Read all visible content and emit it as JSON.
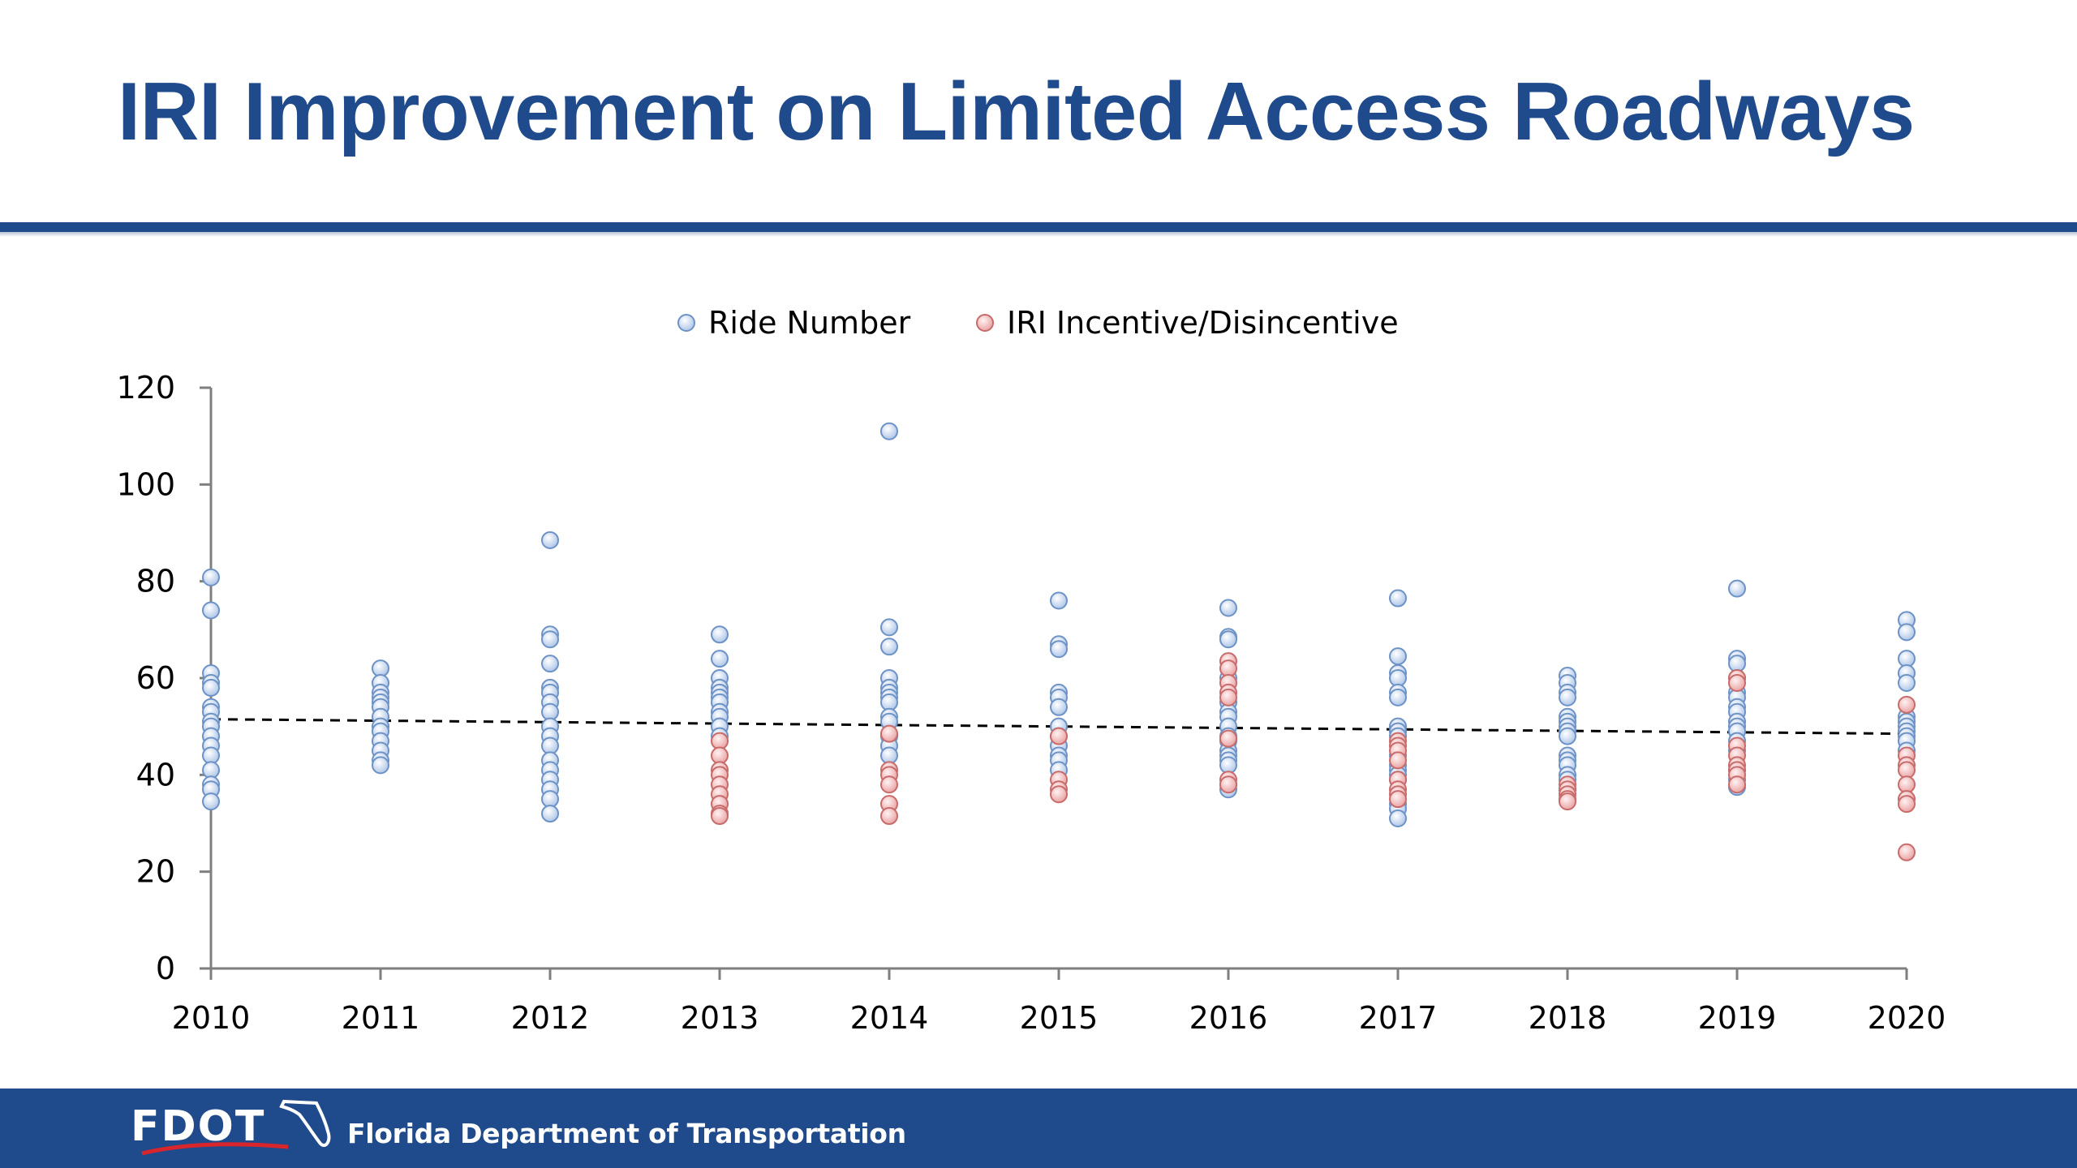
{
  "slide": {
    "title": "IRI Improvement on Limited Access Roadways"
  },
  "footer": {
    "logo_text": "FDOT",
    "organization": "Florida Department of Transportation",
    "color": "#1f4a8c"
  },
  "chart_data": {
    "type": "scatter",
    "title": "",
    "xlabel": "",
    "ylabel": "",
    "xlim": [
      2010,
      2020
    ],
    "ylim": [
      0,
      120
    ],
    "x_ticks": [
      "2010",
      "2011",
      "2012",
      "2013",
      "2014",
      "2015",
      "2016",
      "2017",
      "2018",
      "2019",
      "2020"
    ],
    "y_ticks": [
      "0",
      "20",
      "40",
      "60",
      "80",
      "100",
      "120"
    ],
    "grid": false,
    "legend": {
      "placement": "top-center"
    },
    "series": [
      {
        "name": "Ride Number",
        "color": "#b9cde9",
        "stroke": "#6d93c6",
        "points": [
          [
            2010,
            80.8
          ],
          [
            2010,
            74
          ],
          [
            2010,
            61
          ],
          [
            2010,
            59
          ],
          [
            2010,
            58
          ],
          [
            2010,
            54
          ],
          [
            2010,
            53
          ],
          [
            2010,
            51
          ],
          [
            2010,
            50
          ],
          [
            2010,
            48
          ],
          [
            2010,
            46
          ],
          [
            2010,
            44
          ],
          [
            2010,
            41
          ],
          [
            2010,
            38
          ],
          [
            2010,
            37
          ],
          [
            2010,
            34.5
          ],
          [
            2011,
            62
          ],
          [
            2011,
            59
          ],
          [
            2011,
            57
          ],
          [
            2011,
            56
          ],
          [
            2011,
            55
          ],
          [
            2011,
            54
          ],
          [
            2011,
            52
          ],
          [
            2011,
            50
          ],
          [
            2011,
            49
          ],
          [
            2011,
            47
          ],
          [
            2011,
            45
          ],
          [
            2011,
            43
          ],
          [
            2011,
            42
          ],
          [
            2012,
            88.5
          ],
          [
            2012,
            69
          ],
          [
            2012,
            68
          ],
          [
            2012,
            63
          ],
          [
            2012,
            58
          ],
          [
            2012,
            57
          ],
          [
            2012,
            55
          ],
          [
            2012,
            53
          ],
          [
            2012,
            50
          ],
          [
            2012,
            48
          ],
          [
            2012,
            46
          ],
          [
            2012,
            43
          ],
          [
            2012,
            41
          ],
          [
            2012,
            39
          ],
          [
            2012,
            37
          ],
          [
            2012,
            35
          ],
          [
            2012,
            32
          ],
          [
            2013,
            69
          ],
          [
            2013,
            64
          ],
          [
            2013,
            60
          ],
          [
            2013,
            58
          ],
          [
            2013,
            57
          ],
          [
            2013,
            56
          ],
          [
            2013,
            55
          ],
          [
            2013,
            53
          ],
          [
            2013,
            52
          ],
          [
            2013,
            50
          ],
          [
            2013,
            48
          ],
          [
            2014,
            111
          ],
          [
            2014,
            70.5
          ],
          [
            2014,
            66.5
          ],
          [
            2014,
            60
          ],
          [
            2014,
            58
          ],
          [
            2014,
            57
          ],
          [
            2014,
            56
          ],
          [
            2014,
            55
          ],
          [
            2014,
            52
          ],
          [
            2014,
            51
          ],
          [
            2014,
            48
          ],
          [
            2014,
            46
          ],
          [
            2014,
            44
          ],
          [
            2015,
            76
          ],
          [
            2015,
            67
          ],
          [
            2015,
            66
          ],
          [
            2015,
            57
          ],
          [
            2015,
            56
          ],
          [
            2015,
            54
          ],
          [
            2015,
            50
          ],
          [
            2015,
            48
          ],
          [
            2015,
            46
          ],
          [
            2015,
            44
          ],
          [
            2015,
            43
          ],
          [
            2015,
            41
          ],
          [
            2016,
            74.5
          ],
          [
            2016,
            68.5
          ],
          [
            2016,
            68
          ],
          [
            2016,
            60
          ],
          [
            2016,
            55
          ],
          [
            2016,
            53
          ],
          [
            2016,
            52
          ],
          [
            2016,
            50
          ],
          [
            2016,
            48
          ],
          [
            2016,
            47
          ],
          [
            2016,
            45
          ],
          [
            2016,
            44
          ],
          [
            2016,
            43
          ],
          [
            2016,
            42
          ],
          [
            2016,
            38
          ],
          [
            2016,
            37
          ],
          [
            2017,
            76.5
          ],
          [
            2017,
            64.5
          ],
          [
            2017,
            61
          ],
          [
            2017,
            60
          ],
          [
            2017,
            57
          ],
          [
            2017,
            56
          ],
          [
            2017,
            50
          ],
          [
            2017,
            49
          ],
          [
            2017,
            48
          ],
          [
            2017,
            44
          ],
          [
            2017,
            42
          ],
          [
            2017,
            41
          ],
          [
            2017,
            40
          ],
          [
            2017,
            39
          ],
          [
            2017,
            34
          ],
          [
            2017,
            33
          ],
          [
            2017,
            31
          ],
          [
            2018,
            60.5
          ],
          [
            2018,
            59
          ],
          [
            2018,
            57
          ],
          [
            2018,
            56
          ],
          [
            2018,
            52
          ],
          [
            2018,
            51
          ],
          [
            2018,
            50
          ],
          [
            2018,
            49
          ],
          [
            2018,
            48
          ],
          [
            2018,
            44
          ],
          [
            2018,
            43
          ],
          [
            2018,
            42
          ],
          [
            2018,
            40
          ],
          [
            2018,
            39
          ],
          [
            2018,
            37
          ],
          [
            2019,
            78.5
          ],
          [
            2019,
            64
          ],
          [
            2019,
            63
          ],
          [
            2019,
            60
          ],
          [
            2019,
            57
          ],
          [
            2019,
            56
          ],
          [
            2019,
            54
          ],
          [
            2019,
            53
          ],
          [
            2019,
            51
          ],
          [
            2019,
            50
          ],
          [
            2019,
            49
          ],
          [
            2019,
            47
          ],
          [
            2019,
            45
          ],
          [
            2019,
            41
          ],
          [
            2019,
            39
          ],
          [
            2019,
            37.5
          ],
          [
            2020,
            72
          ],
          [
            2020,
            69.5
          ],
          [
            2020,
            64
          ],
          [
            2020,
            61
          ],
          [
            2020,
            59
          ],
          [
            2020,
            52
          ],
          [
            2020,
            51
          ],
          [
            2020,
            50
          ],
          [
            2020,
            49
          ],
          [
            2020,
            48
          ],
          [
            2020,
            47
          ],
          [
            2020,
            45
          ]
        ]
      },
      {
        "name": "IRI Incentive/Disincentive",
        "color": "#f0bcbc",
        "stroke": "#c86b6b",
        "points": [
          [
            2013,
            47
          ],
          [
            2013,
            44
          ],
          [
            2013,
            41
          ],
          [
            2013,
            40
          ],
          [
            2013,
            38
          ],
          [
            2013,
            36
          ],
          [
            2013,
            34
          ],
          [
            2013,
            32
          ],
          [
            2013,
            31.5
          ],
          [
            2014,
            48.5
          ],
          [
            2014,
            41
          ],
          [
            2014,
            40
          ],
          [
            2014,
            38
          ],
          [
            2014,
            34
          ],
          [
            2014,
            31.5
          ],
          [
            2015,
            48
          ],
          [
            2015,
            39
          ],
          [
            2015,
            37
          ],
          [
            2015,
            36
          ],
          [
            2016,
            63.5
          ],
          [
            2016,
            62
          ],
          [
            2016,
            59
          ],
          [
            2016,
            57
          ],
          [
            2016,
            56
          ],
          [
            2016,
            47.5
          ],
          [
            2016,
            39
          ],
          [
            2016,
            38
          ],
          [
            2017,
            47
          ],
          [
            2017,
            46
          ],
          [
            2017,
            45
          ],
          [
            2017,
            43
          ],
          [
            2017,
            39
          ],
          [
            2017,
            37
          ],
          [
            2017,
            36
          ],
          [
            2017,
            35
          ],
          [
            2018,
            38
          ],
          [
            2018,
            37
          ],
          [
            2018,
            36
          ],
          [
            2018,
            35
          ],
          [
            2018,
            34.5
          ],
          [
            2019,
            60
          ],
          [
            2019,
            59
          ],
          [
            2019,
            46
          ],
          [
            2019,
            44
          ],
          [
            2019,
            42
          ],
          [
            2019,
            41
          ],
          [
            2019,
            40
          ],
          [
            2019,
            38
          ],
          [
            2020,
            54.5
          ],
          [
            2020,
            44
          ],
          [
            2020,
            42
          ],
          [
            2020,
            41
          ],
          [
            2020,
            38
          ],
          [
            2020,
            35
          ],
          [
            2020,
            34
          ],
          [
            2020,
            24
          ]
        ]
      }
    ],
    "trendline": {
      "style": "dashed",
      "color": "#000000",
      "points": [
        [
          2010,
          51.5
        ],
        [
          2020,
          48.5
        ]
      ]
    }
  }
}
